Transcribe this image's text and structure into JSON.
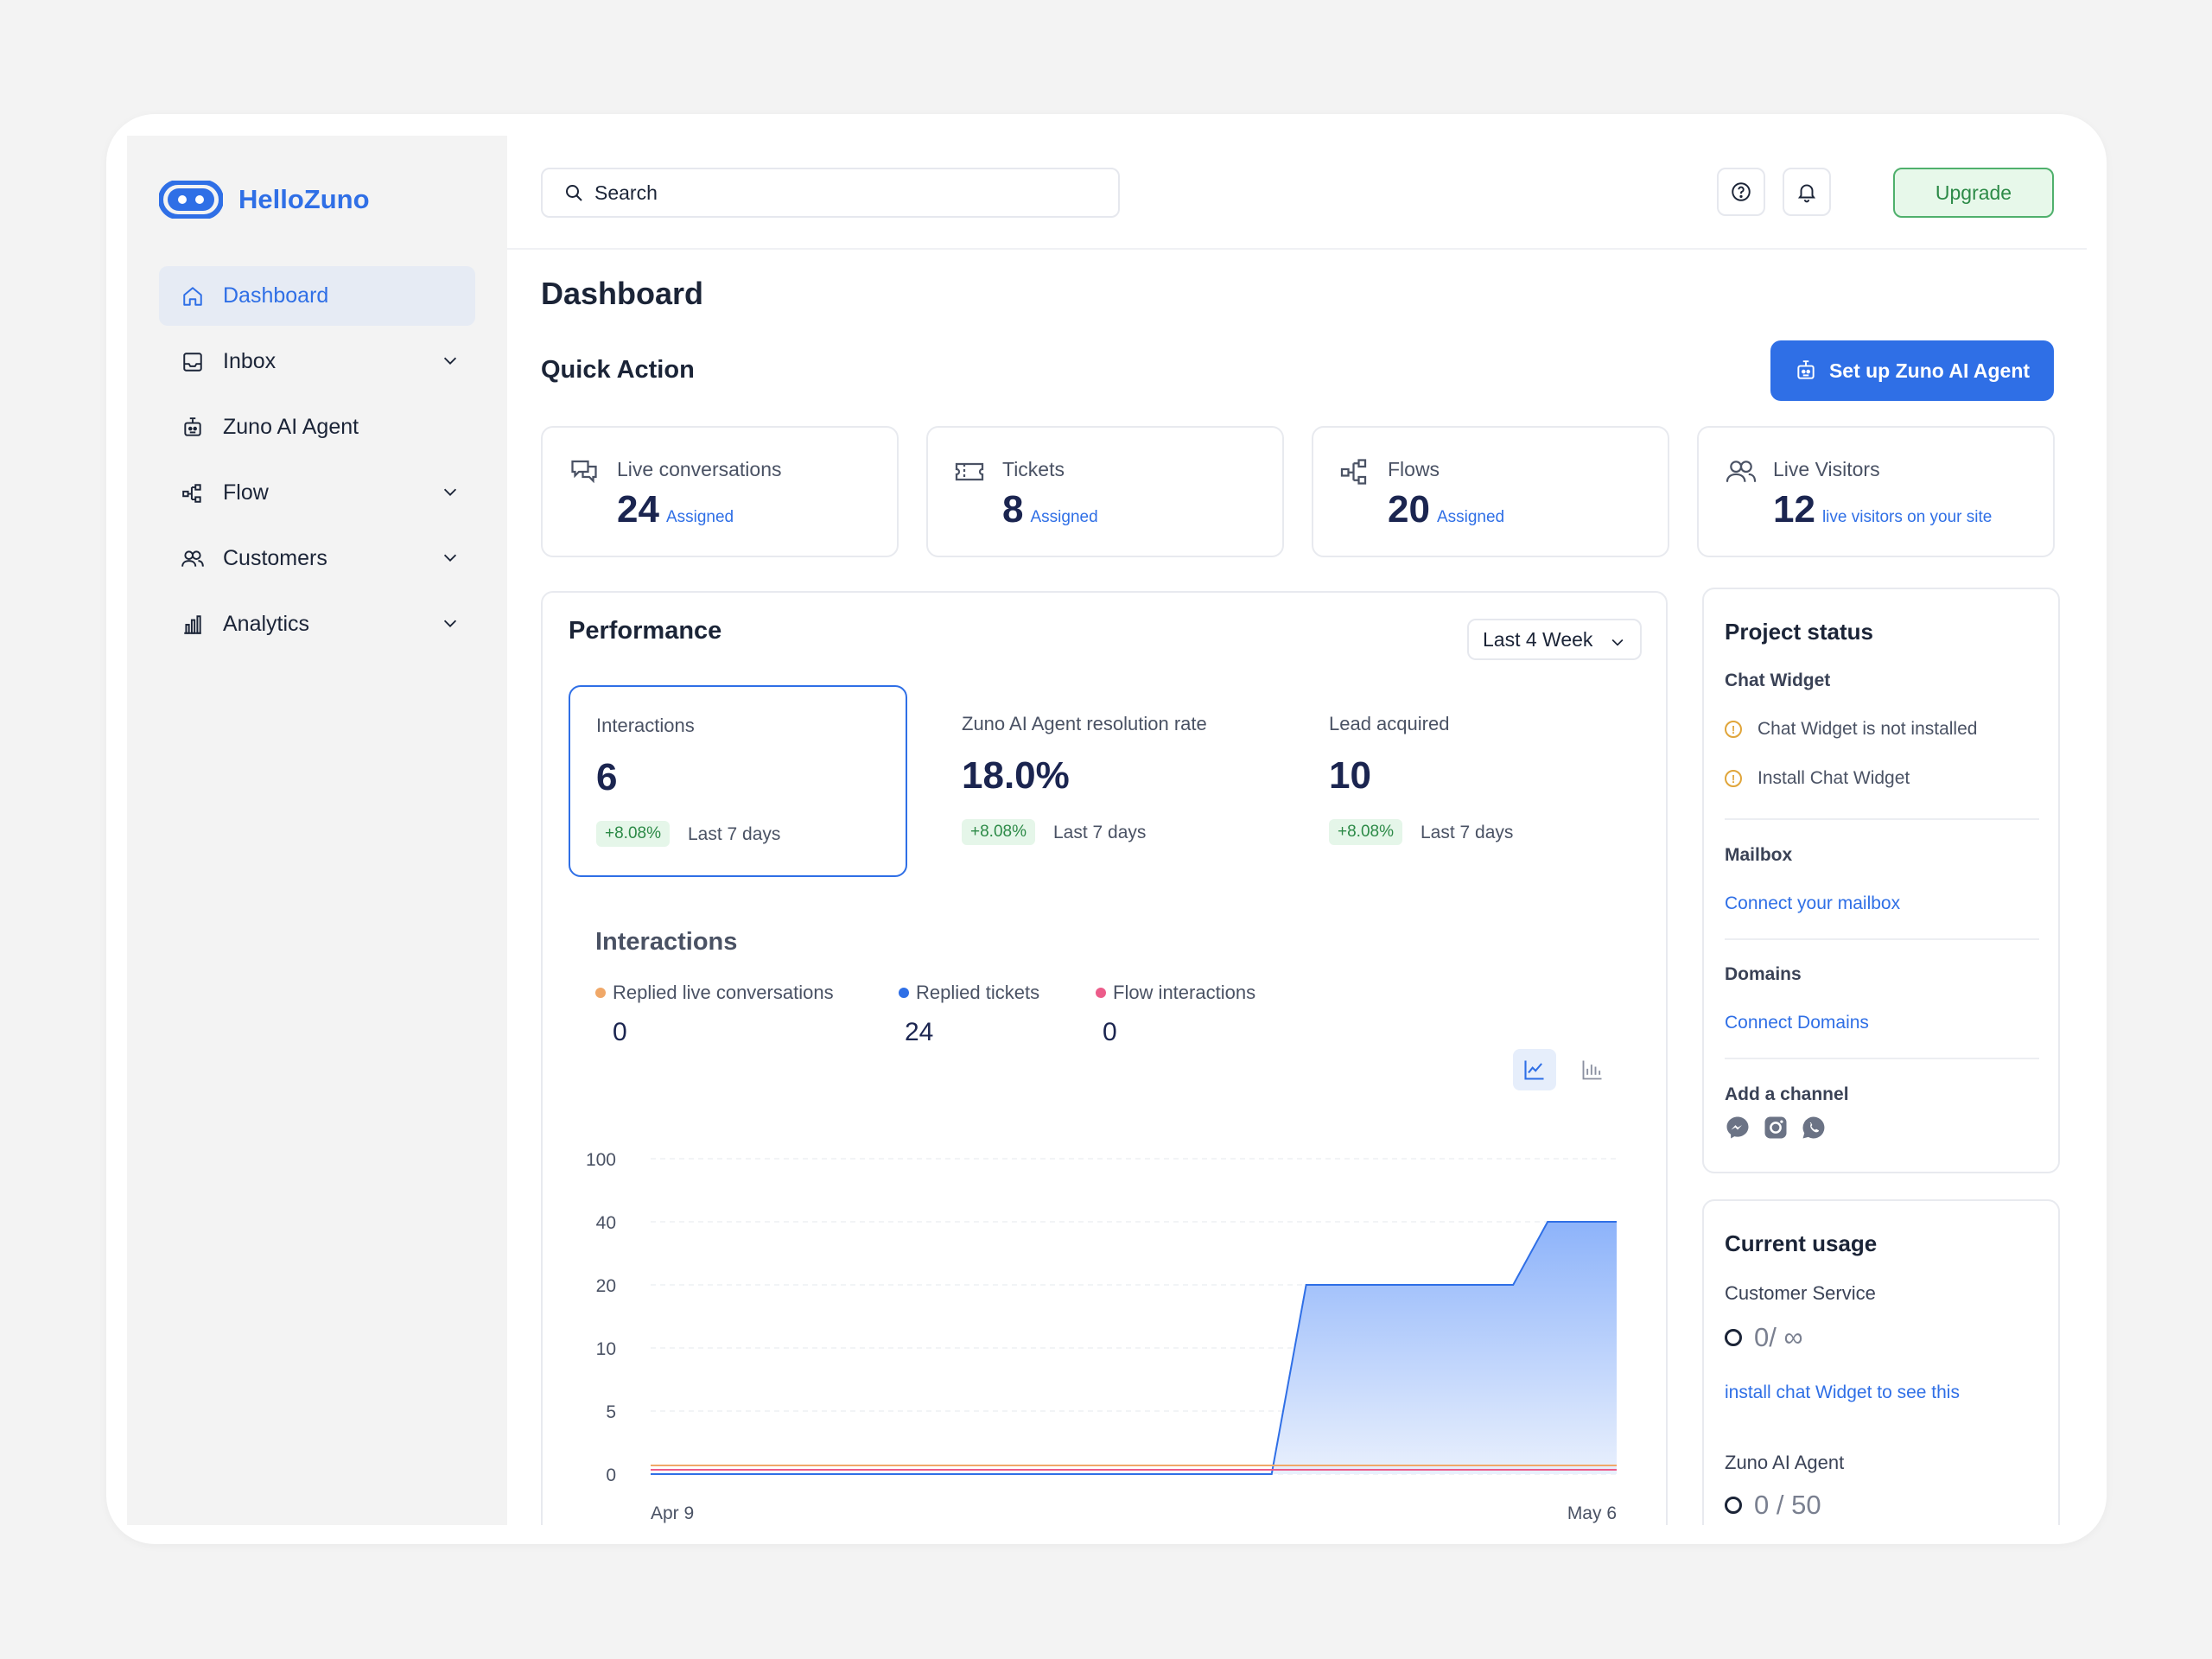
{
  "app": {
    "name": "HelloZuno"
  },
  "sidebar": {
    "items": [
      {
        "label": "Dashboard",
        "icon": "home-icon",
        "active": true,
        "expandable": false
      },
      {
        "label": "Inbox",
        "icon": "inbox-icon",
        "active": false,
        "expandable": true
      },
      {
        "label": "Zuno AI Agent",
        "icon": "bot-icon",
        "active": false,
        "expandable": false
      },
      {
        "label": "Flow",
        "icon": "flow-icon",
        "active": false,
        "expandable": true
      },
      {
        "label": "Customers",
        "icon": "users-icon",
        "active": false,
        "expandable": true
      },
      {
        "label": "Analytics",
        "icon": "bar-chart-icon",
        "active": false,
        "expandable": true
      }
    ]
  },
  "header": {
    "search_placeholder": "Search",
    "upgrade_label": "Upgrade"
  },
  "page": {
    "title": "Dashboard"
  },
  "quick_action": {
    "title": "Quick Action",
    "setup_button": "Set up Zuno AI Agent",
    "cards": [
      {
        "label": "Live conversations",
        "value": "24",
        "sub": "Assigned",
        "icon": "chat-icon"
      },
      {
        "label": "Tickets",
        "value": "8",
        "sub": "Assigned",
        "icon": "ticket-icon"
      },
      {
        "label": "Flows",
        "value": "20",
        "sub": "Assigned",
        "icon": "flow-icon"
      },
      {
        "label": "Live Visitors",
        "value": "12",
        "sub": "live visitors on your site",
        "icon": "users-icon"
      }
    ]
  },
  "performance": {
    "title": "Performance",
    "period": "Last 4 Week",
    "metrics": [
      {
        "label": "Interactions",
        "value": "6",
        "change": "+8.08%",
        "period": "Last 7 days",
        "selected": true
      },
      {
        "label": "Zuno AI Agent resolution rate",
        "value": "18.0%",
        "change": "+8.08%",
        "period": "Last 7 days",
        "selected": false
      },
      {
        "label": "Lead acquired",
        "value": "10",
        "change": "+8.08%",
        "period": "Last 7 days",
        "selected": false
      }
    ],
    "chart_title": "Interactions",
    "legend": [
      {
        "label": "Replied live conversations",
        "value": "0",
        "color": "#f0a868"
      },
      {
        "label": "Replied tickets",
        "value": "24",
        "color": "#2f6fe6"
      },
      {
        "label": "Flow interactions",
        "value": "0",
        "color": "#ec5c8a"
      }
    ]
  },
  "chart_data": {
    "type": "area",
    "title": "Interactions",
    "x_labels": [
      "Apr 9",
      "May 6"
    ],
    "y_ticks": [
      "0",
      "5",
      "10",
      "20",
      "40",
      "100"
    ],
    "series": [
      {
        "name": "Replied tickets",
        "color": "#2f6fe6",
        "values": [
          0,
          0,
          0,
          0,
          0,
          0,
          0,
          0,
          0,
          0,
          0,
          0,
          0,
          0,
          0,
          0,
          0,
          0,
          0,
          20,
          20,
          20,
          20,
          20,
          20,
          20,
          40,
          40,
          40
        ]
      },
      {
        "name": "Replied live conversations",
        "color": "#f0a868",
        "values": [
          0,
          0,
          0,
          0,
          0,
          0,
          0,
          0,
          0,
          0,
          0,
          0,
          0,
          0,
          0,
          0,
          0,
          0,
          0,
          0,
          0,
          0,
          0,
          0,
          0,
          0,
          0,
          0,
          0
        ]
      },
      {
        "name": "Flow interactions",
        "color": "#ec5c8a",
        "values": [
          0,
          0,
          0,
          0,
          0,
          0,
          0,
          0,
          0,
          0,
          0,
          0,
          0,
          0,
          0,
          0,
          0,
          0,
          0,
          0,
          0,
          0,
          0,
          0,
          0,
          0,
          0,
          0,
          0
        ]
      }
    ]
  },
  "project_status": {
    "title": "Project status",
    "chat_widget_title": "Chat Widget",
    "chat_widget_items": [
      "Chat Widget is not installed",
      "Install Chat Widget"
    ],
    "mailbox_title": "Mailbox",
    "mailbox_link": "Connect your mailbox",
    "domains_title": "Domains",
    "domains_link": "Connect Domains",
    "channel_title": "Add a channel",
    "channels": [
      "messenger-icon",
      "instagram-icon",
      "whatsapp-icon"
    ]
  },
  "current_usage": {
    "title": "Current usage",
    "cs_title": "Customer Service",
    "cs_value": "0/ ∞",
    "cs_link": "install chat Widget to see this",
    "agent_title": "Zuno AI Agent",
    "agent_value": "0 / 50"
  }
}
